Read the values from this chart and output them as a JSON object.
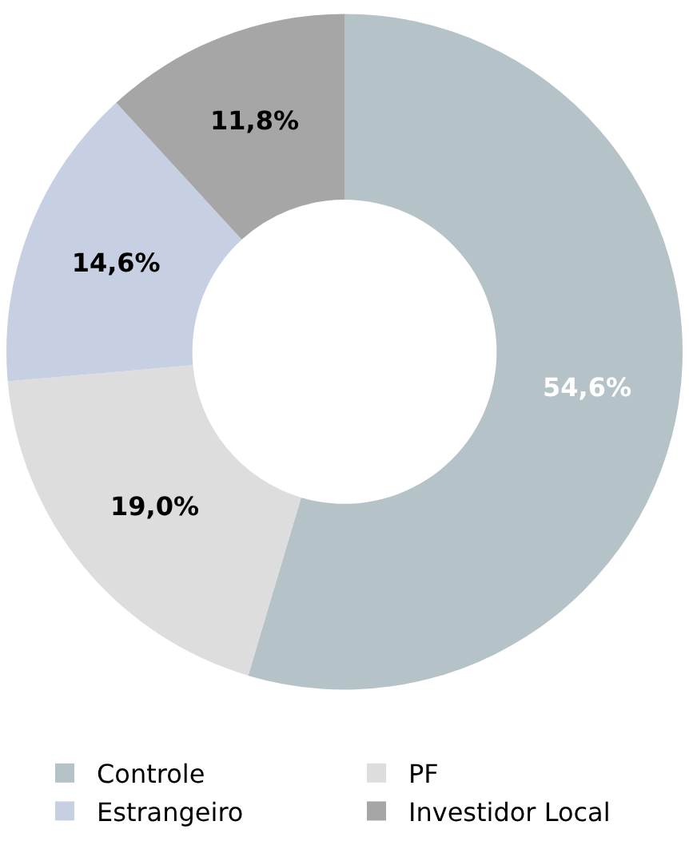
{
  "chart_data": {
    "type": "donut",
    "categories": [
      "Controle",
      "PF",
      "Estrangeiro",
      "Investidor Local"
    ],
    "values": [
      54.6,
      19.0,
      14.6,
      11.8
    ],
    "value_labels": [
      "54,6%",
      "19,0%",
      "14,6%",
      "11,8%"
    ],
    "colors": [
      "#b5c3c8",
      "#dddddd",
      "#c7d0e3",
      "#a6a6a6"
    ],
    "legend": "bottom"
  }
}
